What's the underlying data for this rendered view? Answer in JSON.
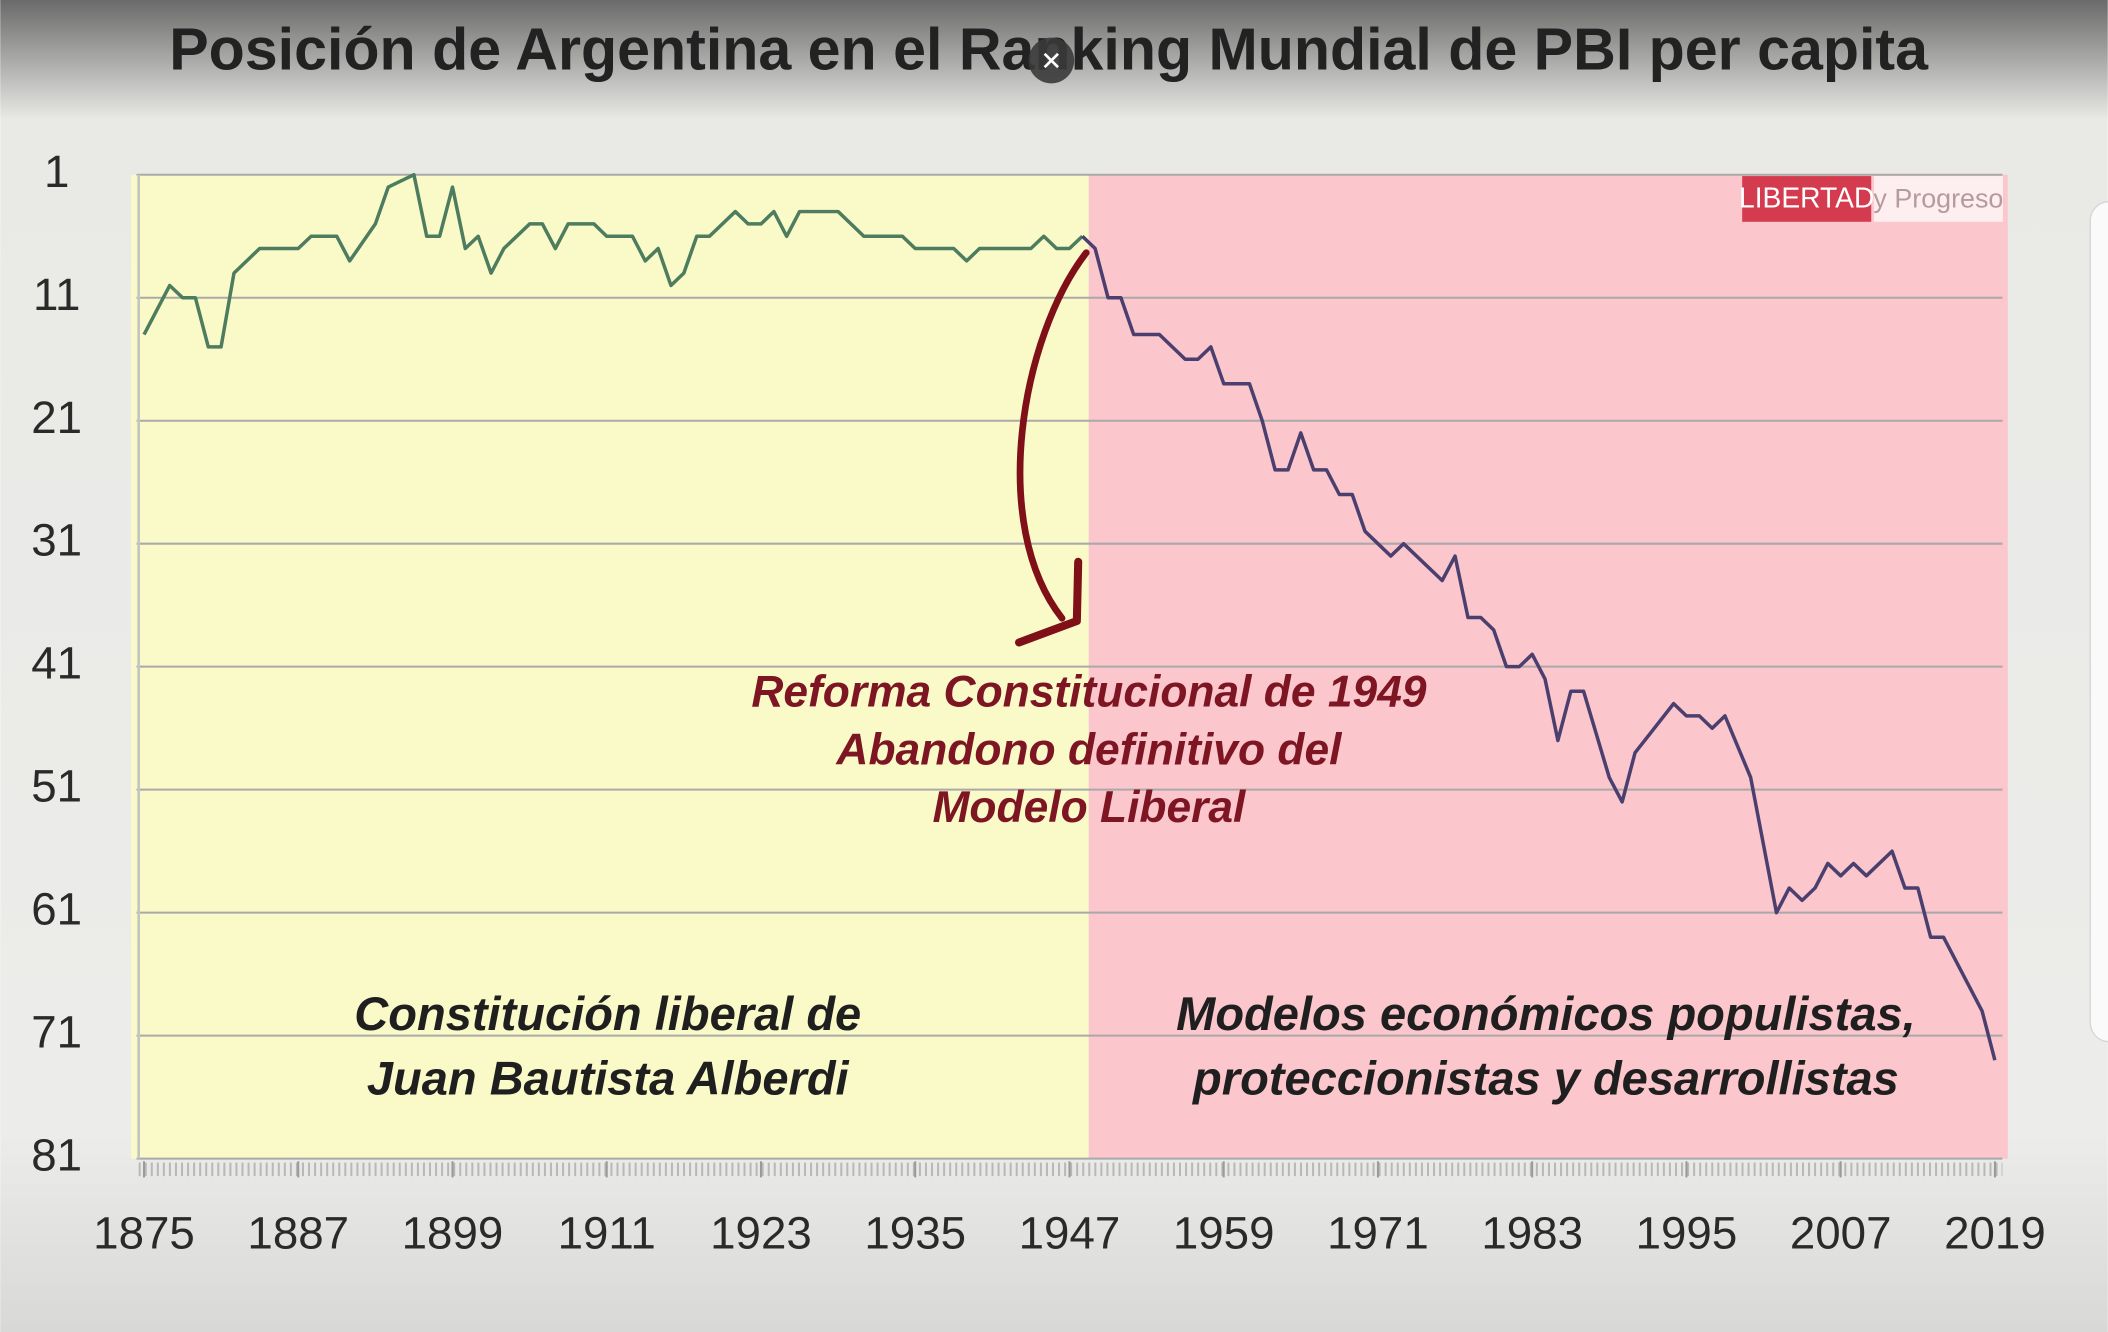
{
  "chart_data": {
    "type": "line",
    "title": "Posición de Argentina en el Ranking Mundial de PBI per capita",
    "x": [
      1875,
      1877,
      1878,
      1879,
      1880,
      1881,
      1882,
      1884,
      1887,
      1888,
      1890,
      1891,
      1893,
      1894,
      1896,
      1897,
      1898,
      1899,
      1900,
      1901,
      1902,
      1903,
      1905,
      1906,
      1907,
      1908,
      1910,
      1911,
      1913,
      1914,
      1915,
      1916,
      1917,
      1918,
      1919,
      1921,
      1922,
      1923,
      1924,
      1925,
      1926,
      1929,
      1931,
      1934,
      1935,
      1938,
      1939,
      1940,
      1944,
      1945,
      1946,
      1947,
      1948,
      1949,
      1950,
      1951,
      1952,
      1954,
      1956,
      1957,
      1958,
      1959,
      1961,
      1962,
      1963,
      1964,
      1965,
      1966,
      1967,
      1968,
      1969,
      1970,
      1972,
      1973,
      1976,
      1977,
      1978,
      1979,
      1980,
      1981,
      1982,
      1983,
      1984,
      1985,
      1986,
      1987,
      1989,
      1990,
      1991,
      1994,
      1995,
      1996,
      1997,
      1998,
      2000,
      2002,
      2003,
      2004,
      2005,
      2006,
      2007,
      2008,
      2009,
      2011,
      2012,
      2013,
      2014,
      2015,
      2018,
      2019
    ],
    "series": [
      {
        "color": "#4d7c5e",
        "values": [
          14,
          10,
          11,
          11,
          15,
          15,
          9,
          7,
          7,
          6,
          6,
          8,
          5,
          2,
          1,
          6,
          6,
          2,
          7,
          6,
          9,
          7,
          5,
          5,
          7,
          5,
          5,
          6,
          6,
          8,
          7,
          10,
          9,
          6,
          6,
          4,
          5,
          5,
          4,
          6,
          4,
          4,
          6,
          6,
          7,
          7,
          8,
          7,
          7,
          6,
          7,
          7,
          6,
          null,
          null,
          null,
          null,
          null,
          null,
          null,
          null,
          null,
          null,
          null,
          null,
          null,
          null,
          null,
          null,
          null,
          null,
          null,
          null,
          null,
          null,
          null,
          null,
          null,
          null,
          null,
          null,
          null,
          null,
          null,
          null,
          null,
          null,
          null,
          null,
          null,
          null,
          null,
          null,
          null,
          null,
          null,
          null,
          null,
          null,
          null,
          null,
          null,
          null,
          null,
          null,
          null,
          null,
          null,
          null,
          null
        ]
      },
      {
        "color": "#4a3f6e",
        "values": [
          null,
          null,
          null,
          null,
          null,
          null,
          null,
          null,
          null,
          null,
          null,
          null,
          null,
          null,
          null,
          null,
          null,
          null,
          null,
          null,
          null,
          null,
          null,
          null,
          null,
          null,
          null,
          null,
          null,
          null,
          null,
          null,
          null,
          null,
          null,
          null,
          null,
          null,
          null,
          null,
          null,
          null,
          null,
          null,
          null,
          null,
          null,
          null,
          null,
          null,
          null,
          null,
          6,
          7,
          11,
          11,
          14,
          14,
          16,
          16,
          15,
          18,
          18,
          21,
          25,
          25,
          22,
          25,
          25,
          27,
          27,
          30,
          32,
          31,
          34,
          32,
          37,
          37,
          38,
          41,
          41,
          40,
          42,
          47,
          43,
          43,
          50,
          52,
          48,
          44,
          45,
          45,
          46,
          45,
          50,
          61,
          59,
          60,
          59,
          57,
          58,
          57,
          58,
          56,
          59,
          59,
          63,
          63,
          69,
          73
        ]
      }
    ],
    "bands": [
      {
        "from": 1874,
        "to": 1948.5,
        "color": "#fafac9"
      },
      {
        "from": 1948.5,
        "to": 2020,
        "color": "#fbc6cc"
      }
    ],
    "xlim": [
      1874,
      2020
    ],
    "xticks": [
      1875,
      1887,
      1899,
      1911,
      1923,
      1935,
      1947,
      1959,
      1971,
      1983,
      1995,
      2007,
      2019
    ],
    "ylim": [
      1,
      81
    ],
    "y_inverted": true,
    "yticks": [
      1,
      11,
      21,
      31,
      41,
      51,
      61,
      71,
      81
    ],
    "grid": true,
    "annotation": [
      "Reforma Constitucional de 1949",
      "Abandono definitivo del",
      "Modelo Liberal"
    ],
    "region_labels": [
      [
        "Constitución liberal de",
        "Juan Bautista Alberdi"
      ],
      [
        "Modelos económicos populistas,",
        "proteccionistas y desarrollistas"
      ]
    ],
    "logo": [
      "LIBERTAD",
      "y Progreso"
    ]
  }
}
